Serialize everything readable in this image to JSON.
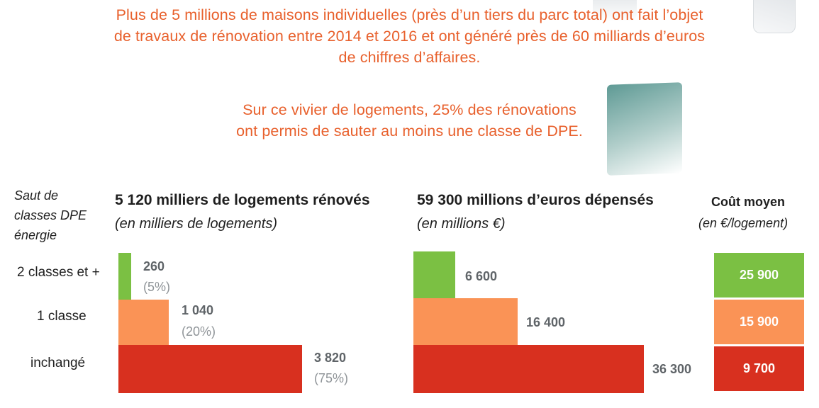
{
  "headline": {
    "line1": "Plus de 5 millions de maisons individuelles (près d’un tiers du parc total) ont fait l’objet",
    "line2": "de travaux de rénovation entre 2014 et 2016 et ont généré près de 60 milliards d’euros",
    "line3": "de chiffres d’affaires.",
    "line4": "Sur ce vivier de logements, 25% des rénovations",
    "line5": "ont permis de sauter au moins une classe de DPE."
  },
  "row_header": {
    "line1": "Saut de",
    "line2": "classes DPE",
    "line3": "énergie"
  },
  "colors": {
    "headline": "#e8602c",
    "classes_2_plus": "#7bc043",
    "classe_1": "#fa9356",
    "inchange": "#d8301f"
  },
  "chart_data": [
    {
      "type": "bar",
      "orientation": "horizontal",
      "title": "5 120 milliers de logements rénovés",
      "subtitle": "(en milliers de logements)",
      "categories": [
        "2 classes et +",
        "1 classe",
        "inchangé"
      ],
      "values": [
        260,
        1040,
        3820
      ],
      "value_labels": [
        "260",
        "1 040",
        "3 820"
      ],
      "shares": [
        "(5%)",
        "(20%)",
        "(75%)"
      ],
      "grid": false
    },
    {
      "type": "bar",
      "orientation": "horizontal",
      "title": "59 300 millions d’euros dépensés",
      "subtitle": "(en millions €)",
      "categories": [
        "2 classes et +",
        "1 classe",
        "inchangé"
      ],
      "values": [
        6600,
        16400,
        36300
      ],
      "value_labels": [
        "6 600",
        "16 400",
        "36 300"
      ],
      "grid": false
    },
    {
      "type": "table",
      "title": "Coût moyen",
      "subtitle": "(en €/logement)",
      "categories": [
        "2 classes et +",
        "1 classe",
        "inchangé"
      ],
      "values": [
        25900,
        15900,
        9700
      ],
      "value_labels": [
        "25 900",
        "15 900",
        "9 700"
      ]
    }
  ]
}
